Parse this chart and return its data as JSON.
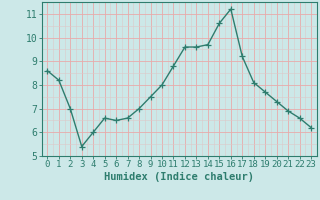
{
  "x": [
    0,
    1,
    2,
    3,
    4,
    5,
    6,
    7,
    8,
    9,
    10,
    11,
    12,
    13,
    14,
    15,
    16,
    17,
    18,
    19,
    20,
    21,
    22,
    23
  ],
  "y": [
    8.6,
    8.2,
    7.0,
    5.4,
    6.0,
    6.6,
    6.5,
    6.6,
    7.0,
    7.5,
    8.0,
    8.8,
    9.6,
    9.6,
    9.7,
    10.6,
    11.2,
    9.2,
    8.1,
    7.7,
    7.3,
    6.9,
    6.6,
    6.2
  ],
  "line_color": "#2e7d6e",
  "marker": "+",
  "marker_size": 4,
  "bg_color": "#cce8e8",
  "grid_major_color": "#e8aaaa",
  "grid_minor_color": "#ddc8c8",
  "xlabel": "Humidex (Indice chaleur)",
  "xlabel_fontsize": 7.5,
  "tick_fontsize": 6.5,
  "xlim": [
    -0.5,
    23.5
  ],
  "ylim": [
    5,
    11.5
  ],
  "yticks": [
    5,
    6,
    7,
    8,
    9,
    10,
    11
  ],
  "xticks": [
    0,
    1,
    2,
    3,
    4,
    5,
    6,
    7,
    8,
    9,
    10,
    11,
    12,
    13,
    14,
    15,
    16,
    17,
    18,
    19,
    20,
    21,
    22,
    23
  ]
}
